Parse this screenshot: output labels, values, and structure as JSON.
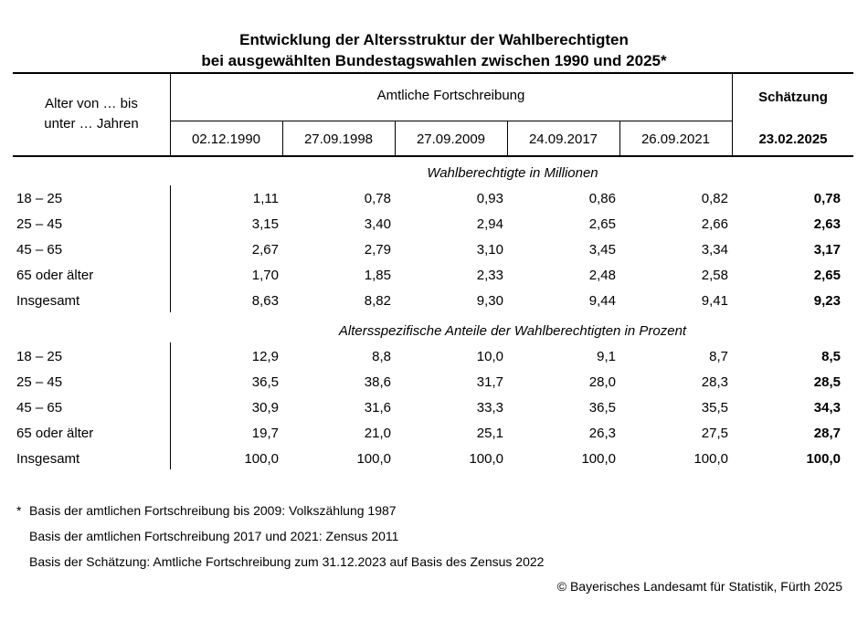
{
  "title_line1": "Entwicklung der Altersstruktur der Wahlberechtigten",
  "title_line2": "bei ausgewählten Bundestagswahlen zwischen 1990 und 2025*",
  "header": {
    "age_label_line1": "Alter von … bis",
    "age_label_line2": "unter … Jahren",
    "official_label": "Amtliche Fortschreibung",
    "estimate_label": "Schätzung",
    "dates": [
      "02.12.1990",
      "27.09.1998",
      "27.09.2009",
      "24.09.2017",
      "26.09.2021"
    ],
    "estimate_date": "23.02.2025"
  },
  "section1": {
    "heading": "Wahlberechtigte in Millionen",
    "rows": [
      {
        "label": "18 – 25",
        "values": [
          "1,11",
          "0,78",
          "0,93",
          "0,86",
          "0,82"
        ],
        "estimate": "0,78"
      },
      {
        "label": "25 – 45",
        "values": [
          "3,15",
          "3,40",
          "2,94",
          "2,65",
          "2,66"
        ],
        "estimate": "2,63"
      },
      {
        "label": "45 – 65",
        "values": [
          "2,67",
          "2,79",
          "3,10",
          "3,45",
          "3,34"
        ],
        "estimate": "3,17"
      },
      {
        "label": "65 oder älter",
        "values": [
          "1,70",
          "1,85",
          "2,33",
          "2,48",
          "2,58"
        ],
        "estimate": "2,65"
      },
      {
        "label": "Insgesamt",
        "values": [
          "8,63",
          "8,82",
          "9,30",
          "9,44",
          "9,41"
        ],
        "estimate": "9,23"
      }
    ]
  },
  "section2": {
    "heading": "Altersspezifische Anteile der Wahlberechtigten in Prozent",
    "rows": [
      {
        "label": "18 – 25",
        "values": [
          "12,9",
          "8,8",
          "10,0",
          "9,1",
          "8,7"
        ],
        "estimate": "8,5"
      },
      {
        "label": "25 – 45",
        "values": [
          "36,5",
          "38,6",
          "31,7",
          "28,0",
          "28,3"
        ],
        "estimate": "28,5"
      },
      {
        "label": "45 – 65",
        "values": [
          "30,9",
          "31,6",
          "33,3",
          "36,5",
          "35,5"
        ],
        "estimate": "34,3"
      },
      {
        "label": "65 oder älter",
        "values": [
          "19,7",
          "21,0",
          "25,1",
          "26,3",
          "27,5"
        ],
        "estimate": "28,7"
      },
      {
        "label": "Insgesamt",
        "values": [
          "100,0",
          "100,0",
          "100,0",
          "100,0",
          "100,0"
        ],
        "estimate": "100,0"
      }
    ]
  },
  "footnotes": {
    "marker": "*",
    "line1": "Basis der amtlichen Fortschreibung bis 2009: Volkszählung 1987",
    "line2": "Basis der amtlichen Fortschreibung 2017 und 2021: Zensus 2011",
    "line3": "Basis der Schätzung: Amtliche Fortschreibung zum 31.12.2023 auf Basis des Zensus 2022"
  },
  "copyright": "© Bayerisches Landesamt für Statistik, Fürth 2025"
}
